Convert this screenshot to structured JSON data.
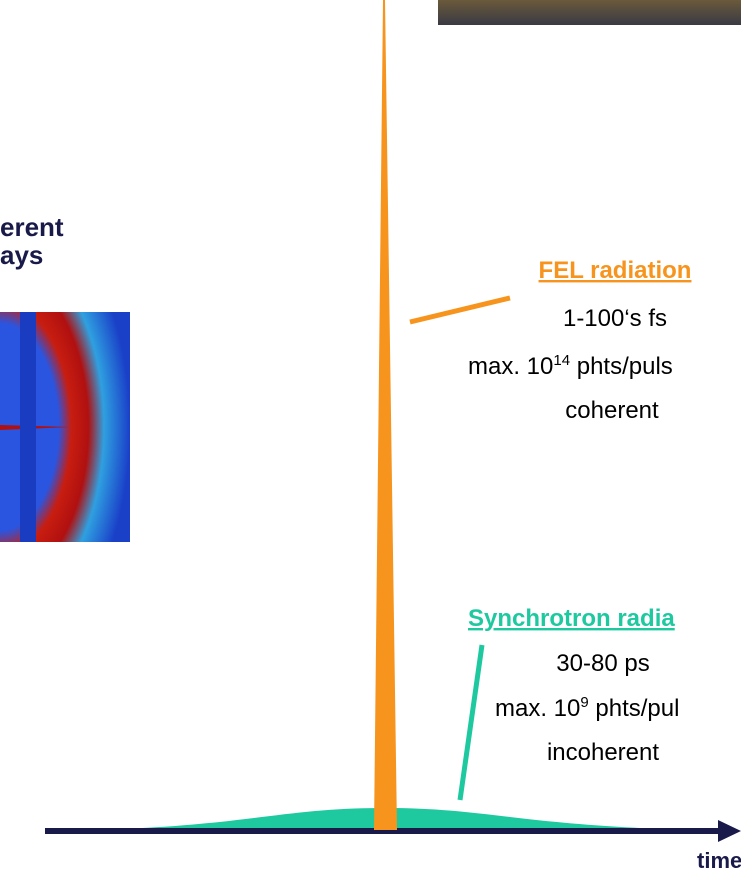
{
  "left_label": {
    "line1": "erent",
    "line2": "ays"
  },
  "fel": {
    "title": "FEL radiation",
    "duration": "1-100‘s fs",
    "flux_prefix": "max. 10",
    "flux_exp": "14",
    "flux_suffix": " phts/puls",
    "coherence": "coherent"
  },
  "synchrotron": {
    "title": "Synchrotron radia",
    "duration": "30-80 ps",
    "flux_prefix": "max. 10",
    "flux_exp": "9",
    "flux_suffix": " phts/pul",
    "coherence": "incoherent"
  },
  "axis": {
    "label": "time"
  }
}
